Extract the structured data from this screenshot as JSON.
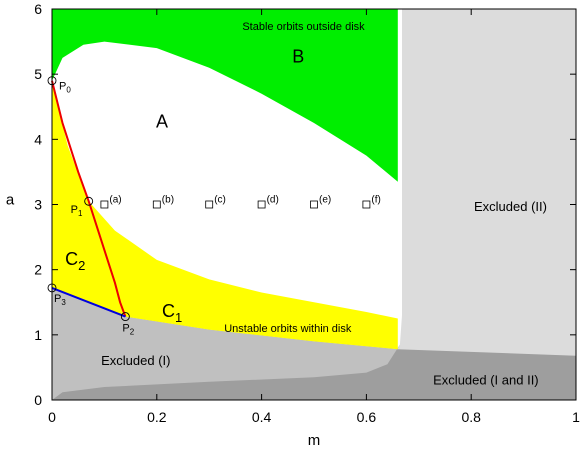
{
  "chart_data": {
    "type": "area",
    "xlabel": "m",
    "ylabel": "a",
    "xlim": [
      0,
      1
    ],
    "ylim": [
      0,
      6
    ],
    "x_ticks": [
      0,
      0.2,
      0.4,
      0.6,
      0.8,
      1
    ],
    "x_tick_labels": [
      "0",
      "0.2",
      "0.4",
      "0.6",
      "0.8",
      "1"
    ],
    "y_ticks": [
      0,
      1,
      2,
      3,
      4,
      5,
      6
    ],
    "y_tick_labels": [
      "0",
      "1",
      "2",
      "3",
      "4",
      "5",
      "6"
    ],
    "colors": {
      "stable": "#00ee00",
      "unstable": "#ffff00",
      "excluded_I": "#c0c0c0",
      "excluded_II": "#dcdcdc",
      "excluded_I_II": "#9e9e9e",
      "curve_red": "#ee0000",
      "curve_blue": "#0000dd"
    },
    "regions": [
      {
        "id": "B",
        "label": "B",
        "caption": "Stable orbits outside disk",
        "boundary": [
          [
            0,
            6
          ],
          [
            0,
            4.9
          ],
          [
            0.02,
            5.25
          ],
          [
            0.06,
            5.45
          ],
          [
            0.1,
            5.5
          ],
          [
            0.2,
            5.4
          ],
          [
            0.3,
            5.1
          ],
          [
            0.4,
            4.7
          ],
          [
            0.5,
            4.25
          ],
          [
            0.6,
            3.75
          ],
          [
            0.66,
            3.35
          ],
          [
            0.66,
            6
          ]
        ]
      },
      {
        "id": "A",
        "label": "A"
      },
      {
        "id": "C1",
        "label": "C",
        "subscript": "1",
        "caption": "Unstable orbits within disk"
      },
      {
        "id": "C2",
        "label": "C",
        "subscript": "2"
      },
      {
        "id": "upper_yellow_edge",
        "boundary": [
          [
            0,
            4.9
          ],
          [
            0.03,
            3.9
          ],
          [
            0.07,
            3.05
          ],
          [
            0.12,
            2.6
          ],
          [
            0.2,
            2.15
          ],
          [
            0.3,
            1.85
          ],
          [
            0.4,
            1.65
          ],
          [
            0.5,
            1.5
          ],
          [
            0.6,
            1.35
          ],
          [
            0.66,
            1.25
          ]
        ]
      },
      {
        "id": "excluded_I",
        "label": "Excluded (I)",
        "top_edge": [
          [
            0,
            1.72
          ],
          [
            0.14,
            1.28
          ],
          [
            0.3,
            1.08
          ],
          [
            0.5,
            0.9
          ],
          [
            0.66,
            0.78
          ],
          [
            1,
            0.68
          ]
        ]
      },
      {
        "id": "excluded_II",
        "label": "Excluded (II)",
        "left_edge": [
          [
            0.668,
            6
          ],
          [
            0.668,
            1.3
          ],
          [
            0.664,
            0.85
          ],
          [
            0.64,
            0.55
          ],
          [
            0.6,
            0.42
          ],
          [
            0.5,
            0.35
          ],
          [
            0.3,
            0.28
          ],
          [
            0.1,
            0.2
          ],
          [
            0.02,
            0.12
          ],
          [
            0,
            0
          ]
        ]
      },
      {
        "id": "excluded_I_II",
        "label": "Excluded (I and II)"
      }
    ],
    "series": [
      {
        "color": "#ee0000",
        "x": [
          0,
          0.02,
          0.05,
          0.07,
          0.1,
          0.12,
          0.13,
          0.14
        ],
        "y": [
          4.9,
          4.25,
          3.5,
          3.05,
          2.3,
          1.8,
          1.5,
          1.28
        ]
      },
      {
        "color": "#0000dd",
        "x": [
          0,
          0.14
        ],
        "y": [
          1.72,
          1.28
        ]
      }
    ],
    "points": [
      {
        "label": "P",
        "subscript": "0",
        "x": 0,
        "y": 4.9
      },
      {
        "label": "P",
        "subscript": "1",
        "x": 0.07,
        "y": 3.05
      },
      {
        "label": "P",
        "subscript": "2",
        "x": 0.14,
        "y": 1.28
      },
      {
        "label": "P",
        "subscript": "3",
        "x": 0,
        "y": 1.72
      }
    ],
    "markers": [
      {
        "label": "(a)",
        "x": 0.1,
        "y": 3
      },
      {
        "label": "(b)",
        "x": 0.2,
        "y": 3
      },
      {
        "label": "(c)",
        "x": 0.3,
        "y": 3
      },
      {
        "label": "(d)",
        "x": 0.4,
        "y": 3
      },
      {
        "label": "(e)",
        "x": 0.5,
        "y": 3
      },
      {
        "label": "(f)",
        "x": 0.6,
        "y": 3
      }
    ]
  }
}
